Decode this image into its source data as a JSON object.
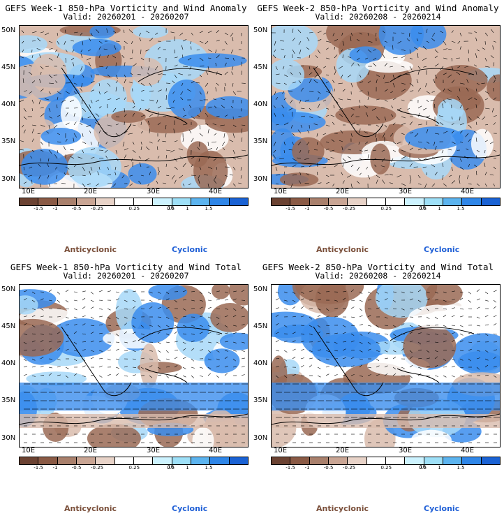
{
  "panels": [
    {
      "title": "GEFS Week-1 850-hPa Vorticity and Wind Anomaly",
      "valid": "Valid: 20260201 - 20260207"
    },
    {
      "title": "GEFS Week-2 850-hPa Vorticity and Wind Anomaly",
      "valid": "Valid: 20260208 - 20260214"
    },
    {
      "title": "GEFS Week-1 850-hPa Vorticity and Wind Total",
      "valid": "Valid: 20260201 - 20260207"
    },
    {
      "title": "GEFS Week-2 850-hPa Vorticity and Wind Total",
      "valid": "Valid: 20260208 - 20260214"
    }
  ],
  "lat_labels": [
    "50N",
    "45N",
    "40N",
    "35N",
    "30N"
  ],
  "lon_labels": [
    "10E",
    "20E",
    "30E",
    "40E"
  ],
  "colorbar": {
    "labels": [
      "-1.5",
      "-1",
      "-0.5",
      "-0.25",
      "0.25",
      "0.5",
      "1",
      "1.5"
    ],
    "scale_label": "10",
    "colors": [
      "#6b4232",
      "#8a5a45",
      "#a9806c",
      "#c9a594",
      "#e8d3c8",
      "#ffffff",
      "#ffffff",
      "#cdf3ff",
      "#9ee0f8",
      "#5cb4ef",
      "#2f86e8",
      "#1a62d4"
    ]
  },
  "legend": {
    "anticyclonic": "Anticyclonic",
    "cyclonic": "Cyclonic",
    "anti_color": "#7a4f3a",
    "cyc_color": "#1f5fd6"
  },
  "map_colors": {
    "brown": "#9a6a55",
    "light_brown": "#d9bcad",
    "blue": "#3b8ded",
    "light_blue": "#a7d8f8",
    "white": "#ffffff"
  }
}
